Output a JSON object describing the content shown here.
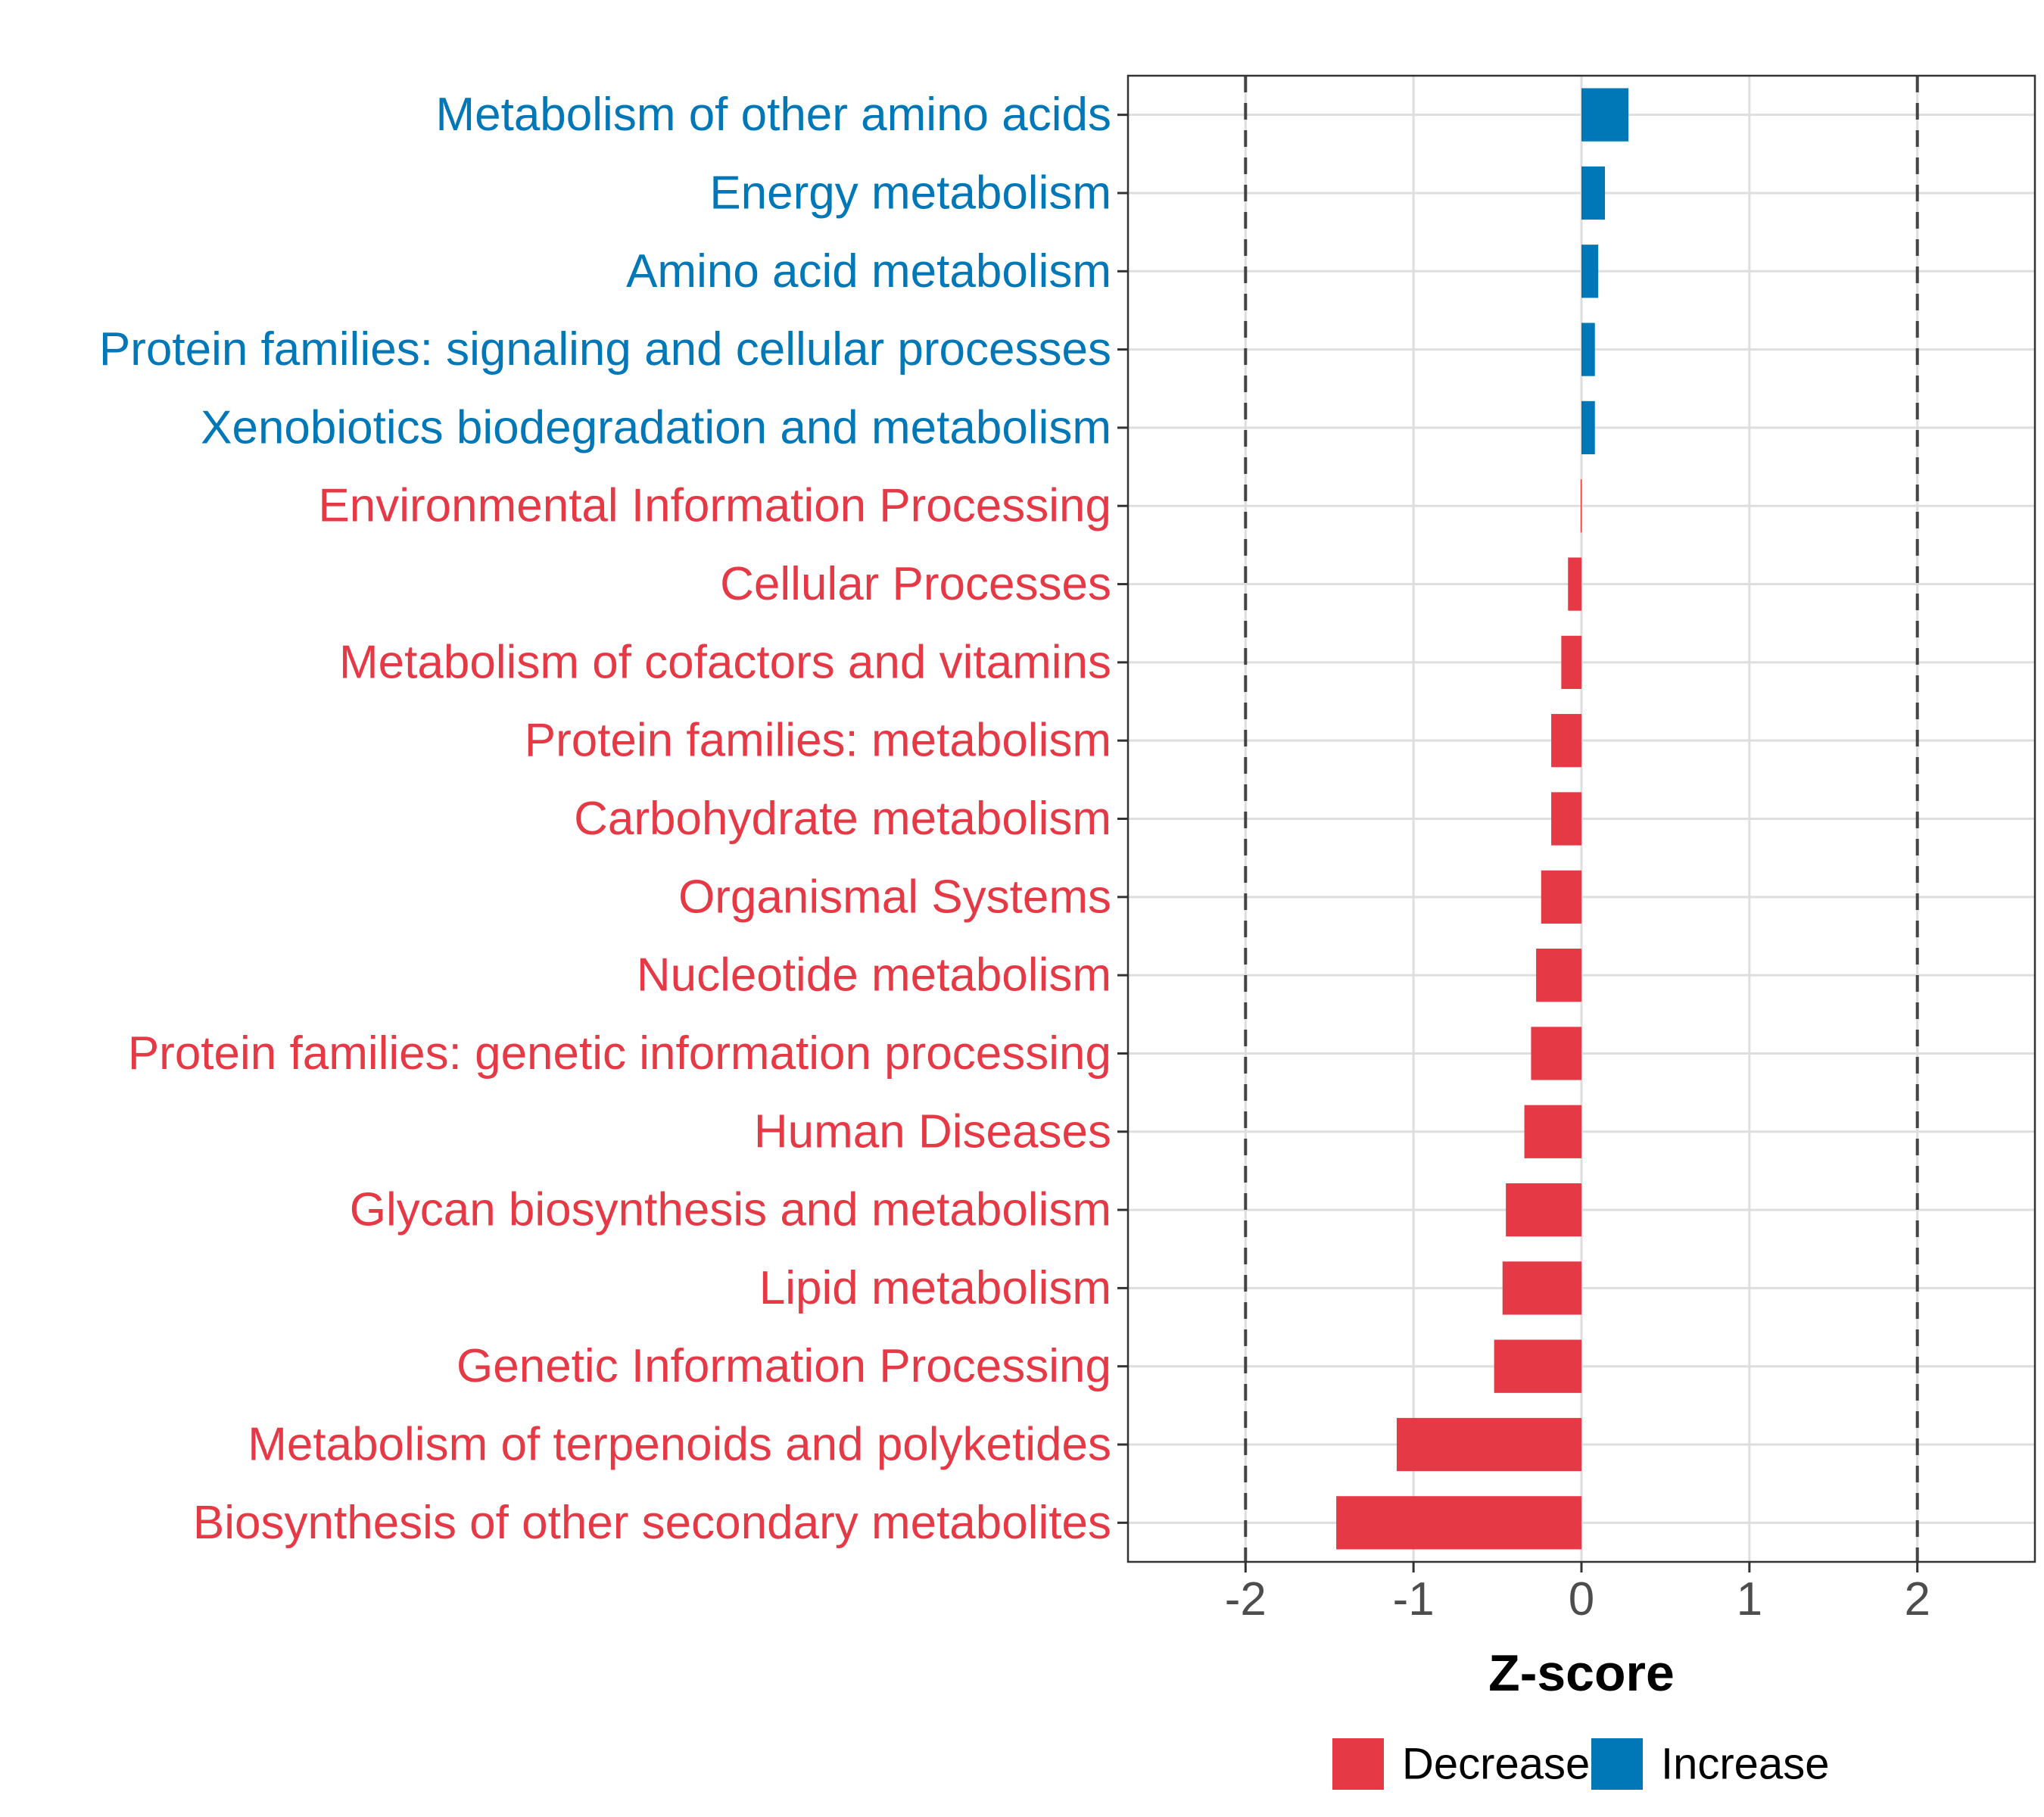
{
  "chart_data": {
    "type": "bar",
    "orientation": "horizontal",
    "xlabel": "Z-score",
    "xlim": [
      -2.7,
      2.7
    ],
    "xticks": [
      -2,
      -1,
      0,
      1,
      2
    ],
    "xtick_labels": [
      "-2",
      "-1",
      "0",
      "1",
      "2"
    ],
    "reference_lines": [
      -2,
      2
    ],
    "grid": true,
    "colors": {
      "Decrease": "#E63946",
      "Increase": "#0077B6"
    },
    "legend": {
      "position": "bottom",
      "entries": [
        {
          "label": "Decrease",
          "color": "#E63946"
        },
        {
          "label": "Increase",
          "color": "#0077B6"
        }
      ]
    },
    "categories": [
      "Metabolism of other amino acids",
      "Energy metabolism",
      "Amino acid metabolism",
      "Protein families: signaling and cellular processes",
      "Xenobiotics biodegradation and metabolism",
      "Environmental Information Processing",
      "Cellular Processes",
      "Metabolism of cofactors and vitamins",
      "Protein families: metabolism",
      "Carbohydrate metabolism",
      "Organismal Systems",
      "Nucleotide metabolism",
      "Protein families: genetic information processing",
      "Human Diseases",
      "Glycan biosynthesis and metabolism",
      "Lipid metabolism",
      "Genetic Information Processing",
      "Metabolism of terpenoids and polyketides",
      "Biosynthesis of other secondary metabolites"
    ],
    "values": [
      0.28,
      0.14,
      0.1,
      0.08,
      0.08,
      -0.005,
      -0.08,
      -0.12,
      -0.18,
      -0.18,
      -0.24,
      -0.27,
      -0.3,
      -0.34,
      -0.45,
      -0.47,
      -0.52,
      -1.1,
      -1.46
    ],
    "direction": [
      "Increase",
      "Increase",
      "Increase",
      "Increase",
      "Increase",
      "Decrease",
      "Decrease",
      "Decrease",
      "Decrease",
      "Decrease",
      "Decrease",
      "Decrease",
      "Decrease",
      "Decrease",
      "Decrease",
      "Decrease",
      "Decrease",
      "Decrease",
      "Decrease"
    ]
  }
}
